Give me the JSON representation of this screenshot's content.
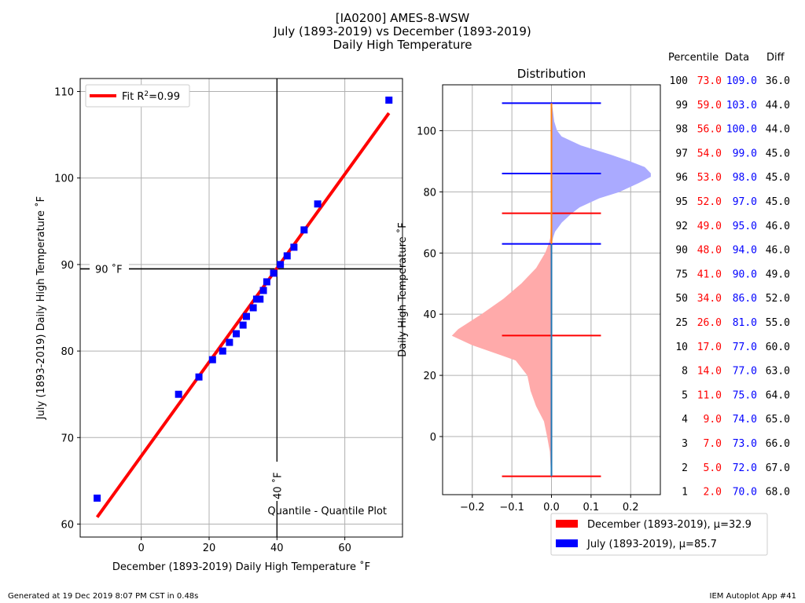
{
  "header": {
    "line1": "[IA0200] AMES-8-WSW",
    "line2": "July (1893-2019) vs December (1893-2019)",
    "line3": "Daily High Temperature"
  },
  "footer": {
    "generated": "Generated at 19 Dec 2019 8:07 PM CST in 0.48s",
    "app": "IEM Autoplot App #41"
  },
  "colors": {
    "december": "#ff0000",
    "july": "#0000ff",
    "fit": "#ff0000",
    "axis": "#000000",
    "grid": "#b0b0b0"
  },
  "chart_data": [
    {
      "type": "scatter",
      "xlabel": "December (1893-2019) Daily High Temperature ˚F",
      "ylabel": "July (1893-2019) Daily High Temperature ˚F",
      "xlim": [
        -18,
        77
      ],
      "ylim": [
        58.5,
        111.5
      ],
      "xticks": [
        0,
        20,
        40,
        60
      ],
      "yticks": [
        60,
        70,
        80,
        90,
        100,
        110
      ],
      "grid": true,
      "legend": "top-left",
      "legend_label_prefix": "Fit R",
      "legend_label_sup": "2",
      "legend_label_suffix": "=0.99",
      "hline": {
        "value": 89.5,
        "label": "90 ˚F"
      },
      "vline": {
        "value": 40,
        "label": "40 ˚F"
      },
      "annotation": "Quantile - Quantile Plot",
      "fit": {
        "x": [
          -13,
          73
        ],
        "y": [
          60.8,
          107.5
        ]
      },
      "points": {
        "x": [
          -13,
          11,
          17,
          21,
          24,
          26,
          28,
          30,
          31,
          33,
          34,
          35,
          36,
          37,
          39,
          41,
          43,
          45,
          48,
          52,
          73
        ],
        "y": [
          63,
          75,
          77,
          79,
          80,
          81,
          82,
          83,
          84,
          85,
          86,
          86,
          87,
          88,
          89,
          90,
          91,
          92,
          94,
          97,
          109
        ]
      }
    },
    {
      "type": "area",
      "title": "Distribution",
      "ylabel": "Daily High Temperature ˚F",
      "xlim": [
        -0.275,
        0.275
      ],
      "ylim": [
        -19,
        115
      ],
      "xticks": [
        -0.2,
        -0.1,
        0.0,
        0.1,
        0.2
      ],
      "xtick_labels": [
        "−0.2",
        "−0.1",
        "0.0",
        "0.1",
        "0.2"
      ],
      "yticks": [
        0,
        20,
        40,
        60,
        80,
        100
      ],
      "grid": true,
      "legend": "bottom-right",
      "series": [
        {
          "name": "December (1893-2019), μ=32.9",
          "color": "#ff0000",
          "fill": "#ffaaaa",
          "y": [
            -13,
            -5,
            0,
            5,
            10,
            15,
            20,
            25,
            30,
            33,
            35,
            40,
            45,
            50,
            55,
            60,
            63,
            65,
            70,
            73
          ],
          "density": [
            0,
            0.003,
            0.01,
            0.018,
            0.038,
            0.052,
            0.06,
            0.09,
            0.2,
            0.25,
            0.235,
            0.175,
            0.12,
            0.075,
            0.038,
            0.015,
            0.006,
            0.002,
            0.0005,
            0
          ],
          "hlines": [
            -13,
            33,
            73
          ]
        },
        {
          "name": "July (1893-2019), μ=85.7",
          "color": "#0000ff",
          "fill": "#aaaaff",
          "y": [
            63,
            65,
            67,
            70,
            73,
            75,
            78,
            80,
            83,
            85,
            86,
            88,
            90,
            92,
            95,
            98,
            100,
            103,
            106,
            109
          ],
          "density": [
            0,
            0.003,
            0.008,
            0.025,
            0.05,
            0.07,
            0.12,
            0.17,
            0.22,
            0.25,
            0.25,
            0.235,
            0.195,
            0.15,
            0.075,
            0.025,
            0.013,
            0.006,
            0.003,
            0
          ],
          "hlines": [
            63,
            86,
            109
          ]
        }
      ]
    }
  ],
  "percentile_table": {
    "headers": [
      "Percentile",
      "Data",
      "Diff"
    ],
    "rows": [
      {
        "p": "100",
        "dec": "73.0",
        "jul": "109.0",
        "diff": "36.0"
      },
      {
        "p": "99",
        "dec": "59.0",
        "jul": "103.0",
        "diff": "44.0"
      },
      {
        "p": "98",
        "dec": "56.0",
        "jul": "100.0",
        "diff": "44.0"
      },
      {
        "p": "97",
        "dec": "54.0",
        "jul": "99.0",
        "diff": "45.0"
      },
      {
        "p": "96",
        "dec": "53.0",
        "jul": "98.0",
        "diff": "45.0"
      },
      {
        "p": "95",
        "dec": "52.0",
        "jul": "97.0",
        "diff": "45.0"
      },
      {
        "p": "92",
        "dec": "49.0",
        "jul": "95.0",
        "diff": "46.0"
      },
      {
        "p": "90",
        "dec": "48.0",
        "jul": "94.0",
        "diff": "46.0"
      },
      {
        "p": "75",
        "dec": "41.0",
        "jul": "90.0",
        "diff": "49.0"
      },
      {
        "p": "50",
        "dec": "34.0",
        "jul": "86.0",
        "diff": "52.0"
      },
      {
        "p": "25",
        "dec": "26.0",
        "jul": "81.0",
        "diff": "55.0"
      },
      {
        "p": "10",
        "dec": "17.0",
        "jul": "77.0",
        "diff": "60.0"
      },
      {
        "p": "8",
        "dec": "14.0",
        "jul": "77.0",
        "diff": "63.0"
      },
      {
        "p": "5",
        "dec": "11.0",
        "jul": "75.0",
        "diff": "64.0"
      },
      {
        "p": "4",
        "dec": "9.0",
        "jul": "74.0",
        "diff": "65.0"
      },
      {
        "p": "3",
        "dec": "7.0",
        "jul": "73.0",
        "diff": "66.0"
      },
      {
        "p": "2",
        "dec": "5.0",
        "jul": "72.0",
        "diff": "67.0"
      },
      {
        "p": "1",
        "dec": "2.0",
        "jul": "70.0",
        "diff": "68.0"
      }
    ]
  }
}
